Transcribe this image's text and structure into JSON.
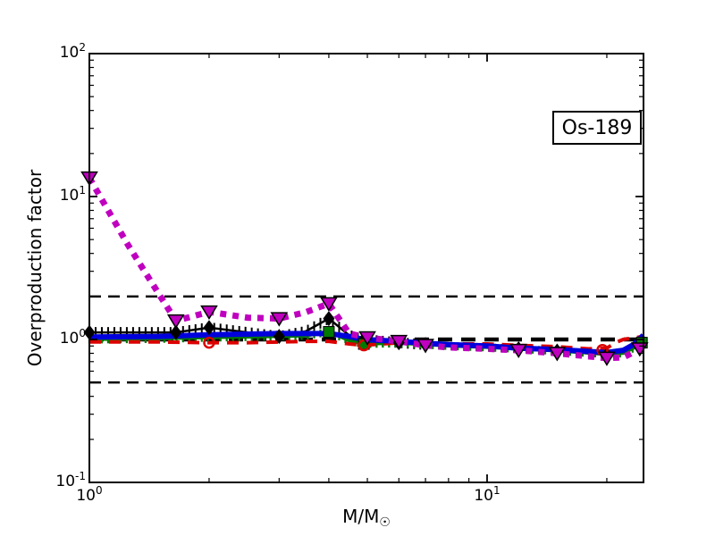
{
  "figure": {
    "background": "#ffffff",
    "annotation_box": "Os-189"
  },
  "chart_data": {
    "type": "line",
    "title": "",
    "xlabel_main": "M/M",
    "xlabel_sub": "☉",
    "ylabel": "Overproduction factor",
    "x_scale": "log",
    "y_scale": "log",
    "xlim": [
      1,
      24.7
    ],
    "ylim": [
      0.1,
      100
    ],
    "grid": false,
    "legend": "none",
    "x_ticks": [
      {
        "exp": "0",
        "value": 1
      },
      {
        "exp": "1",
        "value": 10
      }
    ],
    "y_ticks": [
      {
        "exp": "2",
        "value": 100
      },
      {
        "exp": "1",
        "value": 10
      },
      {
        "exp": "0",
        "value": 1
      },
      {
        "exp": "-1",
        "value": 0.1
      }
    ],
    "reference_lines": [
      {
        "y": 2.0,
        "color": "#000000",
        "lw": 2.5,
        "dash": "13 8"
      },
      {
        "y": 1.0,
        "color": "#000000",
        "lw": 4.5,
        "dash": "16 10"
      },
      {
        "y": 0.5,
        "color": "#000000",
        "lw": 2.5,
        "dash": "13 8"
      }
    ],
    "series": [
      {
        "name": "model-black-hatched",
        "color": "#000000",
        "width": 2.5,
        "dash": null,
        "x": [
          1,
          1.25,
          1.5,
          1.65,
          2,
          2.5,
          3,
          3.5,
          4,
          4.5,
          4.9,
          6,
          7,
          8,
          10,
          12,
          15,
          20,
          22,
          24.7
        ],
        "y": [
          1.12,
          1.12,
          1.12,
          1.12,
          1.21,
          1.12,
          1.05,
          1.14,
          1.4,
          1.07,
          1.0,
          0.95,
          0.92,
          0.9,
          0.88,
          0.86,
          0.83,
          0.78,
          0.8,
          0.95
        ],
        "dense_ticks": {
          "from": 1,
          "to": 7,
          "half_height": 6,
          "tick_width": 2
        },
        "markers": {
          "type": "diamond",
          "x": [
            1,
            1.65,
            2,
            3,
            4,
            4.9,
            6,
            7,
            12,
            15,
            20
          ],
          "y": [
            1.12,
            1.12,
            1.21,
            1.05,
            1.4,
            1.0,
            0.95,
            0.92,
            0.86,
            0.83,
            0.78
          ]
        }
      },
      {
        "name": "model-green",
        "color": "#007A00",
        "width": 3.5,
        "dash": null,
        "x": [
          1,
          1.5,
          2,
          2.5,
          3,
          3.5,
          4,
          4.5,
          4.9,
          6,
          7,
          8,
          10,
          12,
          15,
          20,
          22,
          24.7
        ],
        "y": [
          1.0,
          1.01,
          1.03,
          1.04,
          1.05,
          1.06,
          1.13,
          0.98,
          0.93,
          0.94,
          0.92,
          0.9,
          0.88,
          0.86,
          0.83,
          0.79,
          0.8,
          0.94
        ],
        "dense_ticks": {
          "from": 1,
          "to": 24.7,
          "half_height": 4.5,
          "tick_width": 2.2
        },
        "markers": {
          "type": "square",
          "x": [
            4,
            4.9,
            24.5
          ],
          "y": [
            1.13,
            0.93,
            0.95
          ]
        }
      },
      {
        "name": "model-red-dashed",
        "color": "#DC0000",
        "width": 4,
        "dash": "13 9",
        "x": [
          1,
          1.5,
          2,
          2.5,
          3,
          3.5,
          4,
          4.5,
          4.9,
          6,
          7,
          8,
          10,
          12,
          15,
          18,
          20,
          21,
          22,
          24.7
        ],
        "y": [
          0.96,
          0.96,
          0.95,
          0.95,
          0.96,
          0.97,
          0.97,
          0.93,
          0.91,
          0.95,
          0.94,
          0.93,
          0.93,
          0.91,
          0.89,
          0.86,
          0.87,
          0.95,
          1.0,
          1.05
        ],
        "markers": {
          "type": "circle",
          "x": [
            2,
            4.9,
            19.5
          ],
          "y": [
            0.95,
            0.91,
            0.845
          ]
        }
      },
      {
        "name": "model-blue-thick",
        "color": "#0000DC",
        "width": 6,
        "dash": null,
        "x": [
          1,
          1.5,
          2,
          2.5,
          3,
          3.5,
          4,
          4.5,
          4.9,
          6,
          7,
          8,
          10,
          12,
          15,
          20,
          22,
          23.5,
          24.7
        ],
        "y": [
          1.04,
          1.05,
          1.08,
          1.09,
          1.1,
          1.1,
          1.1,
          1.05,
          1.0,
          0.97,
          0.94,
          0.92,
          0.9,
          0.87,
          0.85,
          0.81,
          0.84,
          0.93,
          1.07
        ]
      },
      {
        "name": "model-magenta-dotted",
        "color": "#BF00BF",
        "width": 7,
        "dash": "7 7",
        "x": [
          1,
          1.25,
          1.5,
          1.65,
          2,
          2.5,
          3,
          3.5,
          4,
          4.5,
          5,
          6,
          7,
          8,
          10,
          12,
          15,
          20,
          22,
          24.7
        ],
        "y": [
          13.5,
          4.6,
          2.05,
          1.35,
          1.56,
          1.42,
          1.4,
          1.55,
          1.78,
          1.1,
          1.03,
          0.97,
          0.91,
          0.88,
          0.86,
          0.84,
          0.8,
          0.74,
          0.75,
          0.88
        ],
        "markers": {
          "type": "triangle-down",
          "x": [
            1,
            1.65,
            2,
            3,
            4,
            5,
            6,
            7,
            12,
            15,
            20,
            24.2
          ],
          "y": [
            13.5,
            1.35,
            1.56,
            1.4,
            1.78,
            1.03,
            0.97,
            0.91,
            0.84,
            0.8,
            0.74,
            0.86
          ]
        }
      }
    ]
  }
}
